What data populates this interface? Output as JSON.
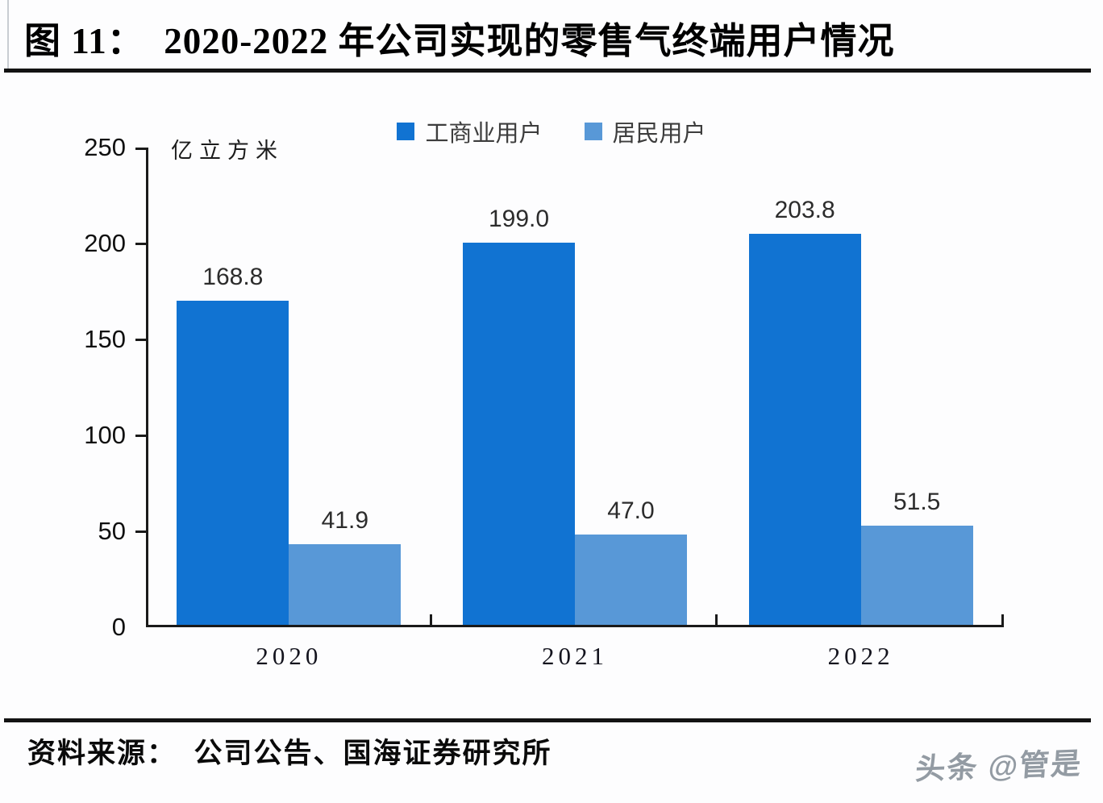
{
  "header": {
    "title": "图 11：  2020-2022 年公司实现的零售气终端用户情况"
  },
  "footer": {
    "source": "资料来源：  公司公告、国海证券研究所",
    "watermark": "头条 @管是"
  },
  "chart_data": {
    "type": "bar",
    "title": "2020-2022 年公司实现的零售气终端用户情况",
    "unit": "亿立方米",
    "categories": [
      "2020",
      "2021",
      "2022"
    ],
    "series": [
      {
        "name": "工商业用户",
        "color": "#1173d2",
        "values": [
          168.8,
          199.0,
          203.8
        ],
        "labels": [
          "168.8",
          "199.0",
          "203.8"
        ]
      },
      {
        "name": "居民用户",
        "color": "#5898d7",
        "values": [
          41.9,
          47.0,
          51.5
        ],
        "labels": [
          "41.9",
          "47.0",
          "51.5"
        ]
      }
    ],
    "ylim": [
      0,
      250
    ],
    "yticks": [
      0,
      50,
      100,
      150,
      200,
      250
    ],
    "grid": false,
    "legend_position": "top-center"
  }
}
